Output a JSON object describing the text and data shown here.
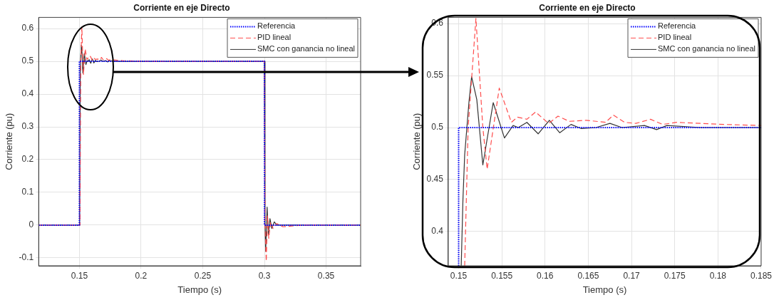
{
  "chart_data": [
    {
      "type": "line",
      "title": "Corriente en eje Directo",
      "xlabel": "Tiempo (s)",
      "ylabel": "Corriente (pu)",
      "xlim": [
        0.117,
        0.378
      ],
      "ylim": [
        -0.124,
        0.634
      ],
      "xticks": [
        0.15,
        0.2,
        0.25,
        0.3,
        0.35
      ],
      "yticks": [
        -0.1,
        0,
        0.1,
        0.2,
        0.3,
        0.4,
        0.5,
        0.6
      ],
      "grid": true,
      "legend": "top right",
      "marker": "none",
      "series": [
        {
          "name": "Referencia",
          "color": "#0000ff",
          "line_style": "dotted",
          "x": [
            0.117,
            0.15,
            0.15,
            0.3,
            0.3,
            0.378
          ],
          "values": [
            0,
            0,
            0.5,
            0.5,
            0,
            0
          ]
        },
        {
          "name": "PID lineal",
          "color": "#ff4d4d",
          "line_style": "dashed",
          "x": [
            0.117,
            0.1505,
            0.1511,
            0.152,
            0.1528,
            0.1533,
            0.1547,
            0.1561,
            0.1568,
            0.1579,
            0.1589,
            0.1604,
            0.1615,
            0.1628,
            0.1648,
            0.167,
            0.1679,
            0.1692,
            0.1705,
            0.1722,
            0.1736,
            0.1752,
            0.178,
            0.1807,
            0.185,
            0.2,
            0.3,
            0.3005,
            0.3015,
            0.3025,
            0.3035,
            0.305,
            0.307,
            0.31,
            0.315,
            0.33,
            0.378
          ],
          "values": [
            0,
            0,
            0.5,
            0.605,
            0.5,
            0.46,
            0.538,
            0.505,
            0.51,
            0.508,
            0.515,
            0.504,
            0.511,
            0.506,
            0.507,
            0.505,
            0.512,
            0.505,
            0.504,
            0.508,
            0.503,
            0.505,
            0.504,
            0.503,
            0.502,
            0.5,
            0.5,
            0,
            -0.11,
            0.03,
            -0.04,
            0.01,
            -0.01,
            0.005,
            -0.005,
            0,
            0
          ]
        },
        {
          "name": "SMC con ganancia no lineal",
          "color": "#333333",
          "line_style": "solid",
          "x": [
            0.117,
            0.1502,
            0.1507,
            0.1512,
            0.1515,
            0.1521,
            0.1528,
            0.154,
            0.1553,
            0.1563,
            0.1569,
            0.1579,
            0.1592,
            0.1605,
            0.1617,
            0.163,
            0.1642,
            0.1659,
            0.1675,
            0.1689,
            0.1715,
            0.1729,
            0.1741,
            0.178,
            0.185,
            0.3,
            0.3005,
            0.301,
            0.3022,
            0.3032,
            0.3045,
            0.306,
            0.308,
            0.31,
            0.378
          ],
          "values": [
            0,
            0,
            0.474,
            0.525,
            0.549,
            0.527,
            0.464,
            0.524,
            0.49,
            0.502,
            0.5,
            0.505,
            0.494,
            0.507,
            0.495,
            0.503,
            0.499,
            0.5,
            0.504,
            0.5,
            0.502,
            0.498,
            0.502,
            0.5,
            0.5,
            0.5,
            0,
            -0.08,
            0.055,
            -0.03,
            0.02,
            -0.01,
            0.01,
            0,
            0
          ]
        }
      ]
    },
    {
      "type": "line",
      "title": "Corriente en eje Directo",
      "xlabel": "Tiempo (s)",
      "ylabel": "Corriente (pu)",
      "xlim": [
        0.1488,
        0.185
      ],
      "ylim": [
        0.367,
        0.606
      ],
      "xticks": [
        0.15,
        0.155,
        0.16,
        0.165,
        0.17,
        0.175,
        0.18,
        0.185
      ],
      "yticks": [
        0.4,
        0.45,
        0.5,
        0.55,
        0.6
      ],
      "grid": true,
      "legend": "top right",
      "marker": "none",
      "series": [
        {
          "name": "Referencia",
          "color": "#0000ff",
          "line_style": "dotted",
          "x": [
            0.15,
            0.15,
            0.185
          ],
          "values": [
            0.367,
            0.5,
            0.5
          ]
        },
        {
          "name": "PID lineal",
          "color": "#ff4d4d",
          "line_style": "dashed",
          "x": [
            0.1507,
            0.1511,
            0.152,
            0.1528,
            0.1533,
            0.1547,
            0.1561,
            0.1568,
            0.1579,
            0.1589,
            0.1604,
            0.1615,
            0.1628,
            0.1648,
            0.167,
            0.1679,
            0.1692,
            0.1705,
            0.1722,
            0.1736,
            0.1752,
            0.178,
            0.1807,
            0.185
          ],
          "values": [
            0.367,
            0.5,
            0.605,
            0.5,
            0.46,
            0.538,
            0.505,
            0.51,
            0.508,
            0.515,
            0.504,
            0.511,
            0.506,
            0.507,
            0.505,
            0.512,
            0.505,
            0.504,
            0.508,
            0.503,
            0.505,
            0.504,
            0.503,
            0.502
          ]
        },
        {
          "name": "SMC con ganancia no lineal",
          "color": "#333333",
          "line_style": "solid",
          "x": [
            0.1503,
            0.1505,
            0.1507,
            0.1512,
            0.1515,
            0.1521,
            0.1528,
            0.154,
            0.1553,
            0.1563,
            0.1569,
            0.1579,
            0.1592,
            0.1605,
            0.1617,
            0.163,
            0.1642,
            0.1659,
            0.1675,
            0.1689,
            0.1715,
            0.1729,
            0.1741,
            0.178,
            0.185
          ],
          "values": [
            0.367,
            0.431,
            0.474,
            0.525,
            0.549,
            0.527,
            0.464,
            0.524,
            0.49,
            0.502,
            0.5,
            0.505,
            0.494,
            0.507,
            0.495,
            0.503,
            0.499,
            0.5,
            0.504,
            0.5,
            0.502,
            0.498,
            0.502,
            0.5,
            0.5
          ]
        }
      ]
    }
  ]
}
